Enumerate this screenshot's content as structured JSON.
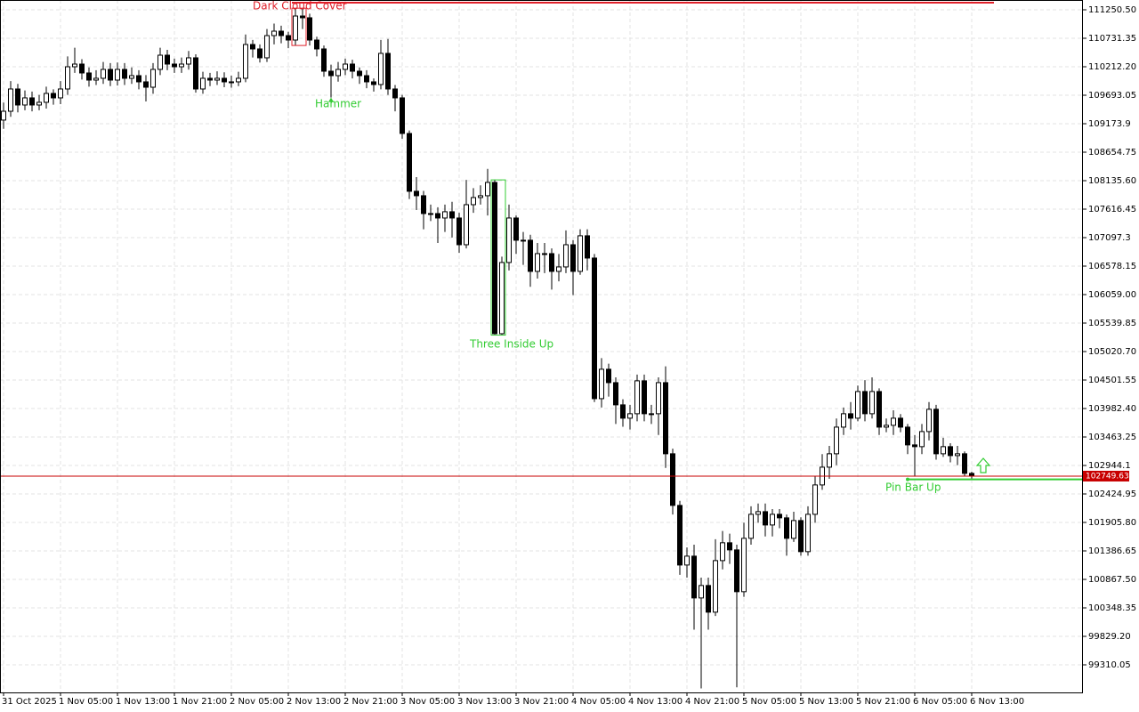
{
  "chart_data": {
    "type": "candlestick",
    "categories": [
      "31 Oct 2025",
      null,
      null,
      null,
      null,
      null,
      null,
      null,
      "1 Nov 05:00",
      null,
      null,
      null,
      null,
      null,
      null,
      null,
      "1 Nov 13:00",
      null,
      null,
      null,
      null,
      null,
      null,
      null,
      "1 Nov 21:00",
      null,
      null,
      null,
      null,
      null,
      null,
      null,
      "2 Nov 05:00",
      null,
      null,
      null,
      null,
      null,
      null,
      null,
      "2 Nov 13:00",
      null,
      null,
      null,
      null,
      null,
      null,
      null,
      "2 Nov 21:00",
      null,
      null,
      null,
      null,
      null,
      null,
      null,
      "3 Nov 05:00",
      null,
      null,
      null,
      null,
      null,
      null,
      null,
      "3 Nov 13:00",
      null,
      null,
      null,
      null,
      null,
      null,
      null,
      "3 Nov 21:00",
      null,
      null,
      null,
      null,
      null,
      null,
      null,
      "4 Nov 05:00",
      null,
      null,
      null,
      null,
      null,
      null,
      null,
      "4 Nov 13:00",
      null,
      null,
      null,
      null,
      null,
      null,
      null,
      "4 Nov 21:00",
      null,
      null,
      null,
      null,
      null,
      null,
      null,
      "5 Nov 05:00",
      null,
      null,
      null,
      null,
      null,
      null,
      null,
      "5 Nov 13:00",
      null,
      null,
      null,
      null,
      null,
      null,
      null,
      "5 Nov 21:00",
      null,
      null,
      null,
      null,
      null,
      null,
      null,
      "6 Nov 05:00",
      null,
      null,
      null,
      null,
      null,
      null,
      null,
      "6 Nov 13:00"
    ],
    "open": [
      109240,
      109401,
      109807,
      109515,
      109645,
      109515,
      109564,
      109726,
      109645,
      109807,
      110212,
      110261,
      110099,
      109969,
      110002,
      110164,
      109969,
      110164,
      110002,
      110050,
      109937,
      109839,
      110164,
      110423,
      110261,
      110212,
      110261,
      110375,
      109807,
      110002,
      109969,
      110002,
      109937,
      109937,
      110002,
      110618,
      110537,
      110375,
      110780,
      110861,
      110780,
      110699,
      111137,
      111105,
      110699,
      110537,
      110131,
      110050,
      110164,
      110261,
      110131,
      110050,
      109937,
      109888,
      110456,
      109807,
      109645,
      108996,
      107942,
      107861,
      107536,
      107536,
      107455,
      107569,
      107455,
      106968,
      107698,
      107828,
      107861,
      108104,
      105346,
      106644,
      107455,
      107050,
      107050,
      106482,
      106806,
      106806,
      106482,
      106563,
      106968,
      106482,
      107131,
      106725,
      104162,
      104698,
      104454,
      104049,
      103806,
      103887,
      104487,
      103887,
      103887,
      104454,
      103157,
      102216,
      101129,
      101291,
      100529,
      100756,
      100270,
      101210,
      101535,
      101405,
      100643,
      101616,
      102054,
      102102,
      101859,
      102054,
      101989,
      101616,
      101940,
      101373,
      102054,
      102589,
      102913,
      103157,
      103643,
      103887,
      103806,
      104292,
      103887,
      104292,
      103643,
      103676,
      103806,
      103643,
      103319,
      103287,
      103562,
      103968,
      103157,
      103287,
      103124,
      103157,
      102800
    ],
    "high": [
      109560,
      109950,
      109900,
      109780,
      109760,
      109700,
      109850,
      109800,
      109950,
      110400,
      110560,
      110350,
      110200,
      110150,
      110300,
      110280,
      110290,
      110280,
      110200,
      110150,
      110060,
      110280,
      110560,
      110520,
      110360,
      110380,
      110500,
      110440,
      110120,
      110100,
      110130,
      110110,
      110050,
      110120,
      110800,
      110700,
      110620,
      110900,
      111000,
      110960,
      110850,
      111260,
      111280,
      111180,
      110760,
      110600,
      110250,
      110300,
      110360,
      110340,
      110200,
      110150,
      110000,
      110700,
      110720,
      109880,
      109700,
      109050,
      108200,
      107950,
      107700,
      107650,
      107700,
      107750,
      107550,
      108150,
      108000,
      108050,
      108350,
      108150,
      106750,
      107700,
      107500,
      107200,
      107150,
      107000,
      107000,
      106900,
      106800,
      107230,
      107050,
      107250,
      107250,
      106800,
      104900,
      104800,
      104550,
      104150,
      104050,
      104600,
      104600,
      104050,
      104550,
      104750,
      103250,
      102300,
      101450,
      101500,
      100900,
      100900,
      101600,
      101750,
      101700,
      101500,
      101900,
      102200,
      102250,
      102250,
      102150,
      102150,
      102050,
      102100,
      102000,
      102200,
      102750,
      103150,
      103300,
      103800,
      104000,
      104100,
      104400,
      104500,
      104550,
      104350,
      103800,
      103950,
      103880,
      103700,
      103500,
      103700,
      104100,
      104050,
      103450,
      103350,
      103300,
      103200,
      102830
    ],
    "low": [
      109080,
      109300,
      109380,
      109420,
      109400,
      109420,
      109450,
      109520,
      109530,
      109700,
      110100,
      109980,
      109850,
      109880,
      109900,
      109860,
      109870,
      109880,
      109900,
      109800,
      109580,
      109720,
      110060,
      110150,
      110100,
      110100,
      110160,
      109740,
      109720,
      109860,
      109880,
      109840,
      109830,
      109860,
      109930,
      110380,
      110290,
      110300,
      110620,
      110640,
      110550,
      110600,
      110900,
      110600,
      110400,
      110030,
      109650,
      109940,
      110060,
      110000,
      109900,
      109820,
      109760,
      109800,
      109700,
      109400,
      108900,
      107800,
      107600,
      107250,
      107400,
      107000,
      107200,
      107100,
      106820,
      106900,
      107550,
      107700,
      107500,
      105330,
      105320,
      106500,
      106800,
      106600,
      106200,
      106350,
      106450,
      106150,
      106300,
      106450,
      106050,
      106420,
      106500,
      104100,
      104000,
      104200,
      103700,
      103650,
      103600,
      103750,
      103750,
      103700,
      103500,
      102900,
      102050,
      100950,
      100900,
      99950,
      98880,
      99950,
      100200,
      101050,
      101150,
      98900,
      100550,
      101500,
      101900,
      101650,
      101650,
      101800,
      101300,
      101550,
      101300,
      101300,
      101900,
      102500,
      102700,
      102950,
      103500,
      103600,
      103750,
      103750,
      103800,
      103500,
      103550,
      103500,
      103550,
      103150,
      102750,
      103150,
      103400,
      103050,
      103100,
      103000,
      102950,
      102750,
      102700
    ],
    "close": [
      109401,
      109807,
      109515,
      109645,
      109515,
      109564,
      109726,
      109645,
      109807,
      110212,
      110261,
      110099,
      109969,
      110002,
      110164,
      109969,
      110164,
      110002,
      110050,
      109937,
      109839,
      110164,
      110423,
      110261,
      110212,
      110261,
      110375,
      109807,
      110002,
      109969,
      110002,
      109937,
      109937,
      110002,
      110618,
      110537,
      110375,
      110780,
      110861,
      110780,
      110699,
      111137,
      111105,
      110699,
      110537,
      110131,
      110050,
      110164,
      110261,
      110131,
      110050,
      109937,
      109888,
      110456,
      109807,
      109645,
      108996,
      107942,
      107861,
      107536,
      107536,
      107455,
      107569,
      107455,
      106968,
      107698,
      107828,
      107861,
      108104,
      105346,
      106644,
      107455,
      107050,
      107050,
      106482,
      106806,
      106806,
      106482,
      106563,
      106968,
      106482,
      107131,
      106725,
      104162,
      104698,
      104454,
      104049,
      103806,
      103887,
      104487,
      103887,
      103887,
      104454,
      103157,
      102216,
      101129,
      101291,
      100529,
      100756,
      100270,
      101210,
      101535,
      101405,
      100643,
      101616,
      102054,
      102102,
      101859,
      102054,
      101989,
      101616,
      101940,
      101373,
      102054,
      102589,
      102913,
      103157,
      103643,
      103887,
      103806,
      104292,
      103887,
      104292,
      103643,
      103676,
      103806,
      103643,
      103319,
      103287,
      103562,
      103968,
      103157,
      103287,
      103124,
      103157,
      102800,
      102750
    ],
    "ylim": [
      98807,
      111429
    ],
    "yticks": [
      {
        "value": 111250.5,
        "label": "111250.50"
      },
      110731.35,
      {
        "value": 110212.2,
        "label": "110212.20"
      },
      109693.05,
      109173.9,
      108654.75,
      {
        "value": 108135.6,
        "label": "108135.60"
      },
      107616.45,
      107097.3,
      106578.15,
      {
        "value": 106059,
        "label": "106059.00"
      },
      105539.85,
      {
        "value": 105020.7,
        "label": "105020.70"
      },
      104501.55,
      {
        "value": 103982.4,
        "label": "103982.40"
      },
      103463.25,
      102944.1,
      102424.95,
      {
        "value": 101905.8,
        "label": "101905.80"
      },
      101386.65,
      {
        "value": 100867.5,
        "label": "100867.50"
      },
      100348.35,
      {
        "value": 99829.2,
        "label": "99829.20"
      },
      99310.05
    ],
    "grid": true,
    "up_color": "#ffffff",
    "down_color": "#000000",
    "current_price": 102749.63,
    "current_price_color": "#c80000",
    "annotations": [
      {
        "label": "Dark Cloud Cover",
        "color": "#e0202a",
        "level": 111380
      },
      {
        "label": "Hammer",
        "color": "#33cc33"
      },
      {
        "label": "Three Inside Up",
        "color": "#33cc33"
      },
      {
        "label": "Pin Bar Up",
        "color": "#33cc33",
        "level": 102690
      }
    ]
  }
}
